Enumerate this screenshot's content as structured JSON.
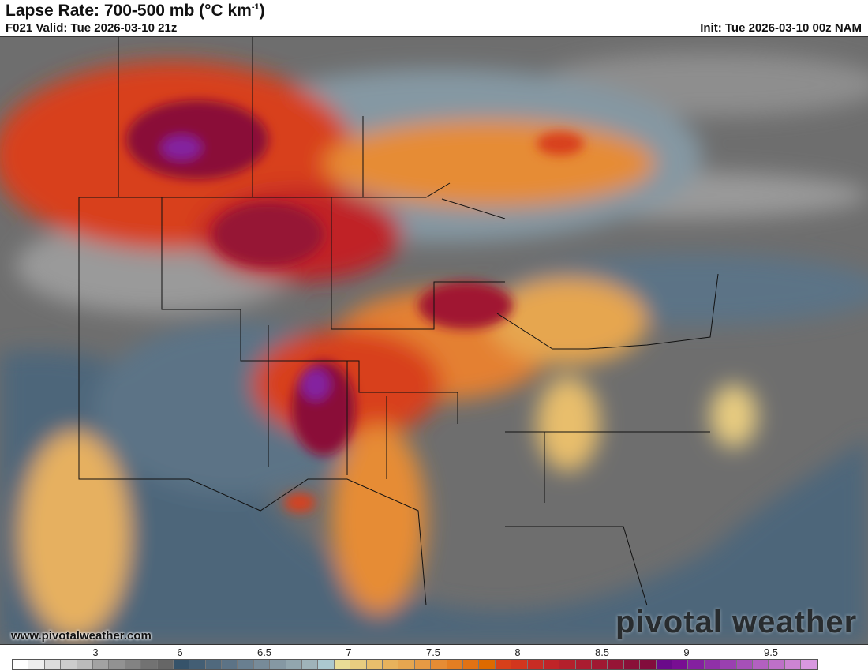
{
  "header": {
    "title": "Lapse Rate: 700-500 mb (°C km",
    "title_sup": "-1",
    "title_end": ")",
    "valid": "F021 Valid: Tue 2026-03-10 21z",
    "init": "Init: Tue 2026-03-10 00z NAM"
  },
  "footer": {
    "url": "www.pivotalweather.com",
    "brand": "pivotal weather"
  },
  "colorbar": {
    "ticks": [
      "3",
      "6",
      "6.5",
      "7",
      "7.5",
      "8",
      "8.5",
      "9",
      "9.5"
    ],
    "colors": [
      "#ffffff",
      "#eeeeee",
      "#dcdcdc",
      "#cccccc",
      "#bbbbbb",
      "#a2a2a2",
      "#929292",
      "#838383",
      "#727272",
      "#666666",
      "#36536a",
      "#435e74",
      "#50697d",
      "#5c7386",
      "#697f90",
      "#778b99",
      "#8598a3",
      "#92a6ae",
      "#9fb3b9",
      "#abc8cf",
      "#e8dc96",
      "#e8cc80",
      "#e8be6c",
      "#e8b25c",
      "#e6a650",
      "#e69a44",
      "#e68c34",
      "#e47e22",
      "#e17214",
      "#de6a00",
      "#d8401a",
      "#d2361e",
      "#c82c24",
      "#c02428",
      "#b4202c",
      "#aa1c30",
      "#a01832",
      "#961436",
      "#8a1038",
      "#820c3c",
      "#6a0a8a",
      "#780e92",
      "#8420a0",
      "#9030a8",
      "#9a40b0",
      "#a650b8",
      "#b260c0",
      "#be70c8",
      "#cc84d2",
      "#d898e0"
    ]
  }
}
